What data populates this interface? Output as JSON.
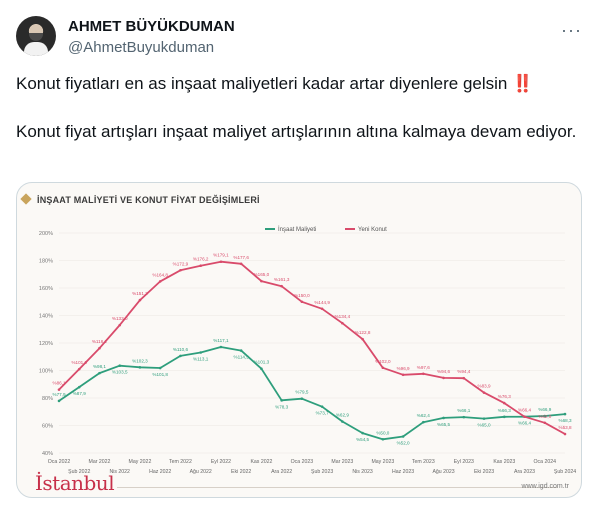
{
  "author": {
    "name": "AHMET BÜYÜKDUMAN",
    "handle": "@AhmetBuyukduman"
  },
  "tweet": {
    "line1": "Konut fiyatları en as inşaat maliyetleri kadar artar diyenlere gelsin",
    "emoji": "‼️",
    "line2": "Konut fiyat artışları inşaat maliyet artışlarının altına kalmaya devam ediyor."
  },
  "icons": {
    "more": "more-dots-icon"
  },
  "colors": {
    "insaat": "#2e9e7c",
    "konut": "#d94b6b"
  },
  "brand": {
    "logo_text": "İstanbul",
    "site": "www.igd.com.tr"
  },
  "chart_data": {
    "type": "line",
    "title": "İNŞAAT MALİYETİ VE KONUT FİYAT DEĞİŞİMLERİ",
    "xlabel": "",
    "ylabel": "",
    "ylim": [
      40,
      200
    ],
    "yticks": [
      "40%",
      "60%",
      "80%",
      "100%",
      "120%",
      "140%",
      "160%",
      "180%",
      "200%"
    ],
    "categories_top": [
      "Oca 2022",
      "Mar 2022",
      "May 2022",
      "Tem 2022",
      "Eyl 2022",
      "Kas 2022",
      "Oca 2023",
      "Mar 2023",
      "May 2023",
      "Tem 2023",
      "Eyl 2023",
      "Kas 2023",
      "Oca 2024"
    ],
    "categories_bottom": [
      "Şub 2022",
      "Nis 2022",
      "Haz 2022",
      "Ağu 2022",
      "Eki 2022",
      "Ara 2022",
      "Şub 2023",
      "Nis 2023",
      "Haz 2023",
      "Ağu 2023",
      "Eki 2023",
      "Ara 2023",
      "Şub 2024"
    ],
    "legend": [
      "İnşaat Maliyeti",
      "Yeni Konut"
    ],
    "series": [
      {
        "name": "İnşaat Maliyeti",
        "values": [
          77.9,
          87.9,
          98.1,
          103.5,
          102.3,
          101.8,
          110.6,
          113.1,
          117.1,
          114.5,
          101.3,
          78.3,
          79.5,
          73.7,
          62.9,
          54.5,
          50.0,
          52.0,
          62.4,
          65.5,
          66.1,
          65.0,
          66.3,
          66.4,
          66.9,
          68.3
        ]
      },
      {
        "name": "Yeni Konut",
        "values": [
          86.1,
          101.0,
          116.2,
          133.0,
          151.2,
          164.8,
          172.9,
          176.2,
          179.1,
          177.6,
          165.0,
          161.3,
          150.0,
          144.9,
          134.4,
          122.8,
          102.0,
          96.9,
          97.6,
          94.6,
          94.4,
          83.9,
          76.3,
          66.4,
          62.0,
          53.8
        ]
      }
    ]
  }
}
